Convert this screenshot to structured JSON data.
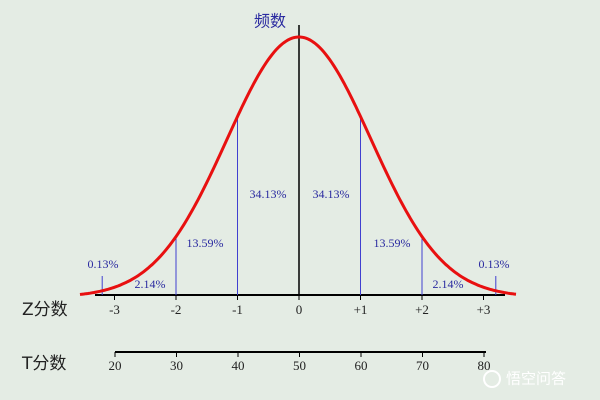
{
  "y_axis_label": "频数",
  "areas": [
    "0.13%",
    "2.14%",
    "13.59%",
    "34.13%",
    "34.13%",
    "13.59%",
    "2.14%",
    "0.13%"
  ],
  "z_axis": {
    "label": "Z分数",
    "ticks": [
      "-3",
      "-2",
      "-1",
      "0",
      "+1",
      "+2",
      "+3"
    ]
  },
  "t_axis": {
    "label": "T分数",
    "ticks": [
      "20",
      "30",
      "40",
      "50",
      "60",
      "70",
      "80"
    ]
  },
  "watermark": "悟空问答"
}
